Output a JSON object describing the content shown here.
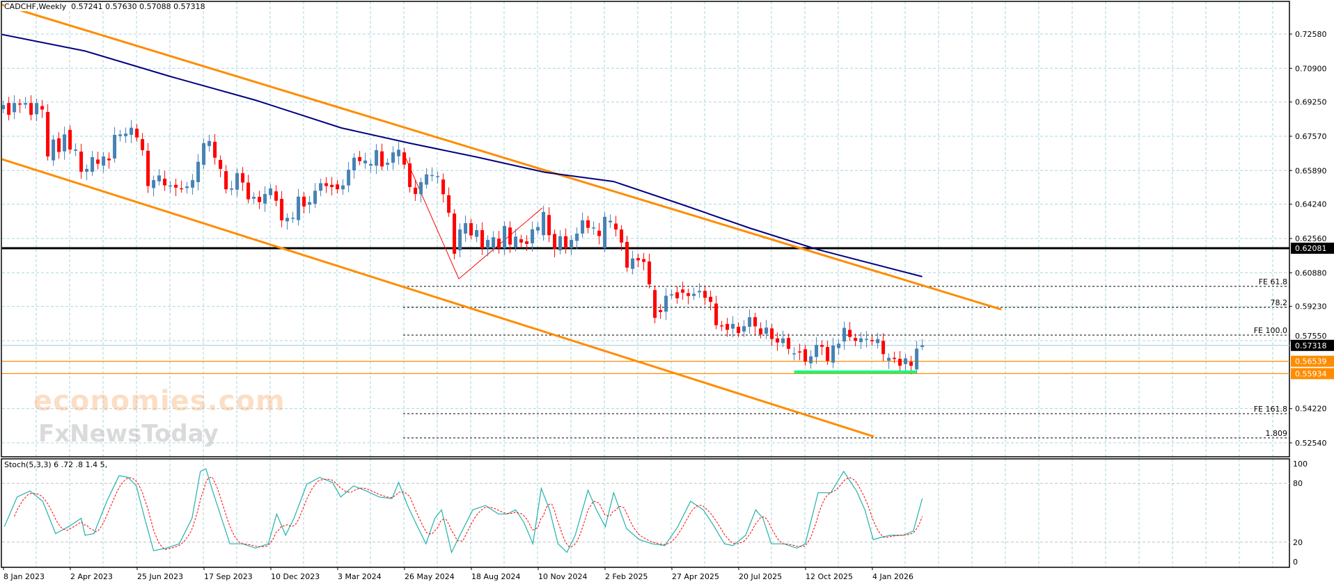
{
  "header": {
    "symbol_timeframe": "CADCHF,Weekly",
    "ohlc": "0.57241 0.57630 0.57088 0.57318"
  },
  "stoch_label": "Stoch(5,3,3) 6 .72 .8 1.4 5,",
  "watermark": {
    "line1": "economies.com",
    "line2": "FxNewsToday"
  },
  "colors": {
    "bull": "#4682B4",
    "bear": "#FF0000",
    "channel": "#FF8C00",
    "ma": "#000080",
    "support": "#00FF7F",
    "grid": "#A9D6DE",
    "stoch_main": "#20B2AA",
    "stoch_signal": "#FF0000",
    "level": "#000000"
  },
  "chart_data": {
    "type": "candlestick",
    "symbol": "CADCHF",
    "timeframe": "Weekly",
    "start_date": "8 Jan 2023",
    "ylim": [
      0.519,
      0.742
    ],
    "price_ticks": [
      "0.72580",
      "0.70900",
      "0.69250",
      "0.67570",
      "0.65890",
      "0.64240",
      "0.62560",
      "0.60880",
      "0.59230",
      "0.57550",
      "0.54220",
      "0.52540"
    ],
    "x_ticks": [
      "8 Jan 2023",
      "2 Apr 2023",
      "25 Jun 2023",
      "17 Sep 2023",
      "10 Dec 2023",
      "3 Mar 2024",
      "26 May 2024",
      "18 Aug 2024",
      "10 Nov 2024",
      "2 Feb 2025",
      "27 Apr 2025",
      "20 Jul 2025",
      "12 Oct 2025",
      "4 Jan 2026"
    ],
    "candles_open_close": [
      [
        0.689,
        0.691
      ],
      [
        0.692,
        0.6862
      ],
      [
        0.6875,
        0.692
      ],
      [
        0.6918,
        0.6912
      ],
      [
        0.6912,
        0.692
      ],
      [
        0.692,
        0.6862
      ],
      [
        0.6865,
        0.692
      ],
      [
        0.6905,
        0.6888
      ],
      [
        0.6876,
        0.6658
      ],
      [
        0.6639,
        0.6741
      ],
      [
        0.6747,
        0.668
      ],
      [
        0.6683,
        0.6766
      ],
      [
        0.6788,
        0.6692
      ],
      [
        0.6686,
        0.6692
      ],
      [
        0.6682,
        0.6583
      ],
      [
        0.6583,
        0.6597
      ],
      [
        0.6583,
        0.6655
      ],
      [
        0.6643,
        0.6622
      ],
      [
        0.6613,
        0.6658
      ],
      [
        0.6648,
        0.6639
      ],
      [
        0.6648,
        0.6764
      ],
      [
        0.6758,
        0.6766
      ],
      [
        0.6758,
        0.677
      ],
      [
        0.6764,
        0.6799
      ],
      [
        0.6794,
        0.6751
      ],
      [
        0.6743,
        0.6689
      ],
      [
        0.6686,
        0.6513
      ],
      [
        0.6503,
        0.6542
      ],
      [
        0.6536,
        0.6565
      ],
      [
        0.6549,
        0.6516
      ],
      [
        0.6514,
        0.6516
      ],
      [
        0.6519,
        0.6505
      ],
      [
        0.6502,
        0.65
      ],
      [
        0.6503,
        0.6511
      ],
      [
        0.6505,
        0.6542
      ],
      [
        0.6532,
        0.6632
      ],
      [
        0.6617,
        0.6723
      ],
      [
        0.6709,
        0.6734
      ],
      [
        0.673,
        0.6652
      ],
      [
        0.6641,
        0.6597
      ],
      [
        0.6586,
        0.6497
      ],
      [
        0.6495,
        0.6501
      ],
      [
        0.6495,
        0.6576
      ],
      [
        0.6576,
        0.653
      ],
      [
        0.653,
        0.6448
      ],
      [
        0.6451,
        0.646
      ],
      [
        0.646,
        0.6434
      ],
      [
        0.6427,
        0.6474
      ],
      [
        0.6468,
        0.6501
      ],
      [
        0.6487,
        0.6441
      ],
      [
        0.645,
        0.6345
      ],
      [
        0.634,
        0.6357
      ],
      [
        0.6352,
        0.6357
      ],
      [
        0.6346,
        0.6461
      ],
      [
        0.6461,
        0.6413
      ],
      [
        0.6421,
        0.6434
      ],
      [
        0.6426,
        0.649
      ],
      [
        0.649,
        0.6527
      ],
      [
        0.6527,
        0.6513
      ],
      [
        0.6519,
        0.6508
      ],
      [
        0.6521,
        0.6497
      ],
      [
        0.6497,
        0.6516
      ],
      [
        0.6516,
        0.6593
      ],
      [
        0.659,
        0.6652
      ],
      [
        0.6655,
        0.6635
      ],
      [
        0.6624,
        0.6638
      ],
      [
        0.6613,
        0.6621
      ],
      [
        0.6613,
        0.6689
      ],
      [
        0.6683,
        0.6609
      ],
      [
        0.6617,
        0.6627
      ],
      [
        0.6627,
        0.6678
      ],
      [
        0.6659,
        0.6691
      ],
      [
        0.6678,
        0.6618
      ],
      [
        0.6624,
        0.6508
      ],
      [
        0.6505,
        0.6474
      ],
      [
        0.6473,
        0.6532
      ],
      [
        0.652,
        0.657
      ],
      [
        0.6563,
        0.6567
      ],
      [
        0.656,
        0.6562
      ],
      [
        0.6545,
        0.6473
      ],
      [
        0.6468,
        0.6382
      ],
      [
        0.6378,
        0.6181
      ],
      [
        0.6198,
        0.63
      ],
      [
        0.628,
        0.6331
      ],
      [
        0.6331,
        0.6271
      ],
      [
        0.6264,
        0.6297
      ],
      [
        0.6297,
        0.6209
      ],
      [
        0.6209,
        0.6249
      ],
      [
        0.6209,
        0.6262
      ],
      [
        0.6255,
        0.6209
      ],
      [
        0.6209,
        0.6317
      ],
      [
        0.631,
        0.6226
      ],
      [
        0.6212,
        0.6265
      ],
      [
        0.6252,
        0.6236
      ],
      [
        0.6242,
        0.6229
      ],
      [
        0.6232,
        0.6301
      ],
      [
        0.6295,
        0.6312
      ],
      [
        0.6272,
        0.6386
      ],
      [
        0.6371,
        0.6272
      ],
      [
        0.6278,
        0.6204
      ],
      [
        0.6198,
        0.6267
      ],
      [
        0.6267,
        0.6209
      ],
      [
        0.6209,
        0.6249
      ],
      [
        0.6244,
        0.628
      ],
      [
        0.628,
        0.6345
      ],
      [
        0.6345,
        0.6308
      ],
      [
        0.6308,
        0.631
      ],
      [
        0.6294,
        0.6268
      ],
      [
        0.6209,
        0.6362
      ],
      [
        0.6335,
        0.6343
      ],
      [
        0.6329,
        0.63
      ],
      [
        0.63,
        0.6236
      ],
      [
        0.6239,
        0.6113
      ],
      [
        0.6107,
        0.6158
      ],
      [
        0.616,
        0.6149
      ],
      [
        0.6155,
        0.6141
      ],
      [
        0.6143,
        0.6031
      ],
      [
        0.6003,
        0.5867
      ],
      [
        0.5905,
        0.5895
      ],
      [
        0.5897,
        0.5975
      ],
      [
        0.598,
        0.5982
      ],
      [
        0.5992,
        0.5963
      ],
      [
        0.6006,
        0.599
      ],
      [
        0.5988,
        0.5974
      ],
      [
        0.5974,
        0.5985
      ],
      [
        0.5992,
        0.5999
      ],
      [
        0.5999,
        0.5965
      ],
      [
        0.597,
        0.5945
      ],
      [
        0.5937,
        0.5831
      ],
      [
        0.583,
        0.5829
      ],
      [
        0.5837,
        0.5808
      ],
      [
        0.5814,
        0.5837
      ],
      [
        0.5823,
        0.5792
      ],
      [
        0.58,
        0.5826
      ],
      [
        0.5823,
        0.587
      ],
      [
        0.587,
        0.5825
      ],
      [
        0.5815,
        0.5786
      ],
      [
        0.5789,
        0.5819
      ],
      [
        0.5815,
        0.5763
      ],
      [
        0.5766,
        0.5746
      ],
      [
        0.5743,
        0.5766
      ],
      [
        0.5768,
        0.5715
      ],
      [
        0.5692,
        0.5693
      ],
      [
        0.5702,
        0.57
      ],
      [
        0.5713,
        0.5652
      ],
      [
        0.5644,
        0.5678
      ],
      [
        0.5675,
        0.5734
      ],
      [
        0.5734,
        0.5725
      ],
      [
        0.5724,
        0.5656
      ],
      [
        0.5647,
        0.5731
      ],
      [
        0.5719,
        0.574
      ],
      [
        0.5751,
        0.5818
      ],
      [
        0.5808,
        0.5773
      ],
      [
        0.5768,
        0.5754
      ],
      [
        0.5748,
        0.5766
      ],
      [
        0.5762,
        0.5764
      ],
      [
        0.5758,
        0.5752
      ],
      [
        0.5743,
        0.5763
      ],
      [
        0.5754,
        0.5689
      ],
      [
        0.5657,
        0.5671
      ],
      [
        0.5671,
        0.5665
      ],
      [
        0.5666,
        0.5632
      ],
      [
        0.564,
        0.5668
      ],
      [
        0.5651,
        0.5632
      ],
      [
        0.5614,
        0.5716
      ],
      [
        0.57241,
        0.57318
      ]
    ],
    "moving_average": [
      [
        -0.6,
        0.7258
      ],
      [
        14.7,
        0.7175
      ],
      [
        30,
        0.705
      ],
      [
        45.3,
        0.6934
      ],
      [
        60.7,
        0.6798
      ],
      [
        73,
        0.6723
      ],
      [
        85,
        0.6655
      ],
      [
        97.3,
        0.658
      ],
      [
        109.6,
        0.6535
      ],
      [
        121.8,
        0.6423
      ],
      [
        134,
        0.6307
      ],
      [
        146.3,
        0.6201
      ],
      [
        165,
        0.6069
      ]
    ],
    "channel_upper": [
      [
        -0.6,
        0.7405
      ],
      [
        179.2,
        0.5908
      ]
    ],
    "channel_lower": [
      [
        -0.6,
        0.6648
      ],
      [
        156.3,
        0.5285
      ]
    ],
    "zigzag": [
      [
        71.8,
        0.6679
      ],
      [
        81.8,
        0.6058
      ],
      [
        96.8,
        0.6406
      ]
    ],
    "support_segment": [
      [
        142,
        0.5602
      ],
      [
        164,
        0.5602
      ]
    ],
    "horizontal_levels": [
      {
        "price": 0.62081,
        "label": "0.62081",
        "style": "black"
      },
      {
        "price": 0.57318,
        "label": "0.57318",
        "style": "current"
      },
      {
        "price": 0.56539,
        "label": "0.56539",
        "style": "orange"
      },
      {
        "price": 0.55934,
        "label": "0.55934",
        "style": "orange"
      }
    ],
    "fib_start_week": 71.8,
    "fib_levels": [
      {
        "label": "FE 61.8",
        "price": 0.6021
      },
      {
        "label": "78.2",
        "price": 0.5918
      },
      {
        "label": "FE 100.0",
        "price": 0.5782
      },
      {
        "label": "FE 161.8",
        "price": 0.5397
      },
      {
        "label": "1.809",
        "price": 0.5278
      }
    ],
    "stochastic": {
      "params": "5,3,3",
      "ylim": [
        0,
        100
      ],
      "levels": [
        "100",
        "80",
        "20",
        "0"
      ],
      "main": [
        [
          0.2,
          35.7
        ],
        [
          2.5,
          66.1
        ],
        [
          4.8,
          72.2
        ],
        [
          7.1,
          61.7
        ],
        [
          9.4,
          28.7
        ],
        [
          11.7,
          35.7
        ],
        [
          14,
          44.3
        ],
        [
          14.7,
          27
        ],
        [
          16.3,
          28.7
        ],
        [
          18.6,
          61.7
        ],
        [
          20.8,
          87.8
        ],
        [
          22.4,
          86.1
        ],
        [
          23.9,
          77.4
        ],
        [
          25.4,
          44.3
        ],
        [
          27,
          11.3
        ],
        [
          29.3,
          13.9
        ],
        [
          31.6,
          18.3
        ],
        [
          33.9,
          44.3
        ],
        [
          35.4,
          92.2
        ],
        [
          36.4,
          94.8
        ],
        [
          37.7,
          70.4
        ],
        [
          39.2,
          44.3
        ],
        [
          40.7,
          18.3
        ],
        [
          43,
          18.3
        ],
        [
          45.3,
          13.9
        ],
        [
          47.6,
          18.3
        ],
        [
          49.1,
          48.7
        ],
        [
          50.7,
          27
        ],
        [
          52.2,
          44.3
        ],
        [
          54.5,
          79.1
        ],
        [
          56.8,
          86.1
        ],
        [
          59.1,
          80.9
        ],
        [
          60.6,
          66.1
        ],
        [
          62.9,
          77.4
        ],
        [
          65.2,
          72.2
        ],
        [
          67.5,
          66.1
        ],
        [
          69.8,
          64.4
        ],
        [
          71,
          80.9
        ],
        [
          72.6,
          57.4
        ],
        [
          74.4,
          35.7
        ],
        [
          75.9,
          18.3
        ],
        [
          77.5,
          44.3
        ],
        [
          78.7,
          53
        ],
        [
          80.5,
          9.6
        ],
        [
          82,
          27
        ],
        [
          84.3,
          53
        ],
        [
          86.6,
          57.4
        ],
        [
          88.9,
          48.7
        ],
        [
          90.5,
          48.7
        ],
        [
          92,
          53
        ],
        [
          93.5,
          40
        ],
        [
          95.1,
          18.3
        ],
        [
          96.6,
          74.8
        ],
        [
          98.1,
          53
        ],
        [
          99.6,
          18.3
        ],
        [
          101.2,
          9.6
        ],
        [
          102.7,
          27
        ],
        [
          105,
          73
        ],
        [
          106.5,
          53
        ],
        [
          108.1,
          35.7
        ],
        [
          109.6,
          70.4
        ],
        [
          111.9,
          33.9
        ],
        [
          114.2,
          22.6
        ],
        [
          116.5,
          18.3
        ],
        [
          118.8,
          16.5
        ],
        [
          121.1,
          35.7
        ],
        [
          123.4,
          61.7
        ],
        [
          125.7,
          53
        ],
        [
          127.2,
          40
        ],
        [
          129.5,
          18.3
        ],
        [
          131,
          16.5
        ],
        [
          133.3,
          27
        ],
        [
          135.1,
          53
        ],
        [
          136.4,
          44.3
        ],
        [
          137.9,
          18.3
        ],
        [
          140.2,
          18.3
        ],
        [
          142.5,
          13.9
        ],
        [
          144,
          18.3
        ],
        [
          146.3,
          70.4
        ],
        [
          148.6,
          70.4
        ],
        [
          150.9,
          92.2
        ],
        [
          153.2,
          72.2
        ],
        [
          154.7,
          53
        ],
        [
          156.2,
          22.6
        ],
        [
          157.8,
          25.2
        ],
        [
          159.3,
          27
        ],
        [
          161.6,
          27
        ],
        [
          163.4,
          31.3
        ],
        [
          165,
          64.4
        ]
      ]
    }
  }
}
